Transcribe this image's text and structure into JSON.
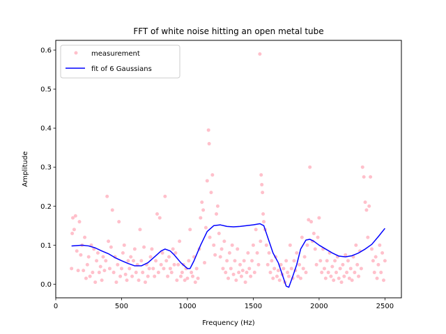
{
  "chart_data": {
    "type": "scatter",
    "title": "FFT of white noise hitting an open metal tube",
    "xlabel": "Frequency (Hz)",
    "ylabel": "Amplitude",
    "xlim": [
      0,
      2625
    ],
    "ylim": [
      -0.035,
      0.625
    ],
    "xticks": [
      0,
      500,
      1000,
      1500,
      2000,
      2500
    ],
    "yticks": [
      0.0,
      0.1,
      0.2,
      0.3,
      0.4,
      0.5,
      0.6
    ],
    "grid": false,
    "legend": "top-left",
    "series": [
      {
        "name": "measurement",
        "kind": "scatter",
        "color": "#ffc0cb",
        "points": [
          [
            120,
            0.04
          ],
          [
            125,
            0.13
          ],
          [
            130,
            0.17
          ],
          [
            140,
            0.14
          ],
          [
            150,
            0.175
          ],
          [
            160,
            0.085
          ],
          [
            170,
            0.035
          ],
          [
            180,
            0.16
          ],
          [
            190,
            0.075
          ],
          [
            200,
            0.1
          ],
          [
            210,
            0.035
          ],
          [
            220,
            0.12
          ],
          [
            230,
            0.015
          ],
          [
            240,
            0.05
          ],
          [
            250,
            0.07
          ],
          [
            260,
            0.02
          ],
          [
            270,
            0.1
          ],
          [
            280,
            0.03
          ],
          [
            290,
            0.09
          ],
          [
            300,
            0.005
          ],
          [
            310,
            0.06
          ],
          [
            320,
            0.08
          ],
          [
            330,
            0.03
          ],
          [
            340,
            0.045
          ],
          [
            350,
            0.01
          ],
          [
            360,
            0.07
          ],
          [
            370,
            0.035
          ],
          [
            380,
            0.06
          ],
          [
            390,
            0.225
          ],
          [
            400,
            0.11
          ],
          [
            410,
            0.04
          ],
          [
            420,
            0.095
          ],
          [
            430,
            0.19
          ],
          [
            440,
            0.03
          ],
          [
            450,
            0.07
          ],
          [
            460,
            0.005
          ],
          [
            470,
            0.05
          ],
          [
            480,
            0.16
          ],
          [
            490,
            0.02
          ],
          [
            500,
            0.04
          ],
          [
            510,
            0.08
          ],
          [
            520,
            0.1
          ],
          [
            530,
            0.025
          ],
          [
            540,
            0.01
          ],
          [
            550,
            0.06
          ],
          [
            560,
            0.04
          ],
          [
            570,
            0.07
          ],
          [
            580,
            0.02
          ],
          [
            590,
            0.06
          ],
          [
            600,
            0.09
          ],
          [
            610,
            0.03
          ],
          [
            620,
            0.05
          ],
          [
            630,
            0.01
          ],
          [
            640,
            0.14
          ],
          [
            650,
            0.06
          ],
          [
            660,
            0.03
          ],
          [
            670,
            0.095
          ],
          [
            680,
            0.005
          ],
          [
            690,
            0.05
          ],
          [
            700,
            0.02
          ],
          [
            710,
            0.04
          ],
          [
            720,
            0.07
          ],
          [
            730,
            0.09
          ],
          [
            740,
            0.04
          ],
          [
            750,
            0.02
          ],
          [
            760,
            0.06
          ],
          [
            770,
            0.18
          ],
          [
            780,
            0.03
          ],
          [
            790,
            0.17
          ],
          [
            800,
            0.05
          ],
          [
            810,
            0.08
          ],
          [
            820,
            0.04
          ],
          [
            830,
            0.225
          ],
          [
            840,
            0.06
          ],
          [
            850,
            0.02
          ],
          [
            860,
            0.07
          ],
          [
            870,
            0.04
          ],
          [
            880,
            0.03
          ],
          [
            890,
            0.09
          ],
          [
            900,
            0.05
          ],
          [
            910,
            0.08
          ],
          [
            920,
            0.01
          ],
          [
            930,
            0.05
          ],
          [
            940,
            0.11
          ],
          [
            950,
            0.02
          ],
          [
            960,
            0.03
          ],
          [
            970,
            0.05
          ],
          [
            980,
            0.01
          ],
          [
            990,
            0.04
          ],
          [
            1000,
            0.015
          ],
          [
            1010,
            0.06
          ],
          [
            1020,
            0.14
          ],
          [
            1030,
            0.03
          ],
          [
            1040,
            0.02
          ],
          [
            1050,
            0.07
          ],
          [
            1060,
            0.005
          ],
          [
            1070,
            0.04
          ],
          [
            1080,
            0.015
          ],
          [
            1090,
            0.09
          ],
          [
            1100,
            0.17
          ],
          [
            1110,
            0.21
          ],
          [
            1120,
            0.19
          ],
          [
            1130,
            0.055
          ],
          [
            1140,
            0.145
          ],
          [
            1150,
            0.265
          ],
          [
            1160,
            0.395
          ],
          [
            1165,
            0.36
          ],
          [
            1170,
            0.12
          ],
          [
            1180,
            0.235
          ],
          [
            1190,
            0.28
          ],
          [
            1200,
            0.1
          ],
          [
            1210,
            0.075
          ],
          [
            1220,
            0.18
          ],
          [
            1230,
            0.2
          ],
          [
            1240,
            0.13
          ],
          [
            1250,
            0.07
          ],
          [
            1260,
            0.09
          ],
          [
            1270,
            0.04
          ],
          [
            1280,
            0.11
          ],
          [
            1290,
            0.03
          ],
          [
            1300,
            0.06
          ],
          [
            1310,
            0.015
          ],
          [
            1320,
            0.08
          ],
          [
            1330,
            0.04
          ],
          [
            1340,
            0.1
          ],
          [
            1350,
            0.025
          ],
          [
            1360,
            0.06
          ],
          [
            1370,
            0.01
          ],
          [
            1380,
            0.09
          ],
          [
            1390,
            0.03
          ],
          [
            1400,
            0.05
          ],
          [
            1410,
            0.02
          ],
          [
            1420,
            0.035
          ],
          [
            1430,
            0.06
          ],
          [
            1440,
            0.005
          ],
          [
            1450,
            0.03
          ],
          [
            1460,
            0.08
          ],
          [
            1470,
            0.04
          ],
          [
            1480,
            0.02
          ],
          [
            1490,
            0.06
          ],
          [
            1500,
            0.1
          ],
          [
            1510,
            0.03
          ],
          [
            1520,
            0.14
          ],
          [
            1530,
            0.08
          ],
          [
            1540,
            0.05
          ],
          [
            1550,
            0.59
          ],
          [
            1555,
            0.11
          ],
          [
            1560,
            0.28
          ],
          [
            1565,
            0.255
          ],
          [
            1570,
            0.235
          ],
          [
            1575,
            0.18
          ],
          [
            1580,
            0.16
          ],
          [
            1590,
            0.14
          ],
          [
            1600,
            0.1
          ],
          [
            1610,
            0.05
          ],
          [
            1620,
            0.08
          ],
          [
            1630,
            0.03
          ],
          [
            1640,
            0.06
          ],
          [
            1650,
            0.015
          ],
          [
            1660,
            0.04
          ],
          [
            1670,
            0.07
          ],
          [
            1680,
            0.02
          ],
          [
            1690,
            0.035
          ],
          [
            1700,
            0.01
          ],
          [
            1710,
            0.05
          ],
          [
            1720,
            0.025
          ],
          [
            1730,
            0.04
          ],
          [
            1740,
            0.005
          ],
          [
            1750,
            0.06
          ],
          [
            1760,
            0.03
          ],
          [
            1770,
            0.02
          ],
          [
            1780,
            0.1
          ],
          [
            1790,
            0.04
          ],
          [
            1800,
            0.015
          ],
          [
            1810,
            0.06
          ],
          [
            1820,
            0.035
          ],
          [
            1830,
            0.08
          ],
          [
            1840,
            0.02
          ],
          [
            1850,
            0.05
          ],
          [
            1860,
            0.015
          ],
          [
            1870,
            0.12
          ],
          [
            1880,
            0.04
          ],
          [
            1890,
            0.07
          ],
          [
            1900,
            0.03
          ],
          [
            1910,
            0.1
          ],
          [
            1920,
            0.165
          ],
          [
            1930,
            0.3
          ],
          [
            1940,
            0.16
          ],
          [
            1950,
            0.11
          ],
          [
            1960,
            0.13
          ],
          [
            1970,
            0.09
          ],
          [
            1980,
            0.05
          ],
          [
            1990,
            0.12
          ],
          [
            2000,
            0.17
          ],
          [
            2010,
            0.06
          ],
          [
            2020,
            0.03
          ],
          [
            2030,
            0.09
          ],
          [
            2040,
            0.04
          ],
          [
            2050,
            0.015
          ],
          [
            2060,
            0.06
          ],
          [
            2070,
            0.03
          ],
          [
            2080,
            0.08
          ],
          [
            2090,
            0.02
          ],
          [
            2100,
            0.045
          ],
          [
            2110,
            0.01
          ],
          [
            2120,
            0.06
          ],
          [
            2130,
            0.03
          ],
          [
            2140,
            0.07
          ],
          [
            2150,
            0.015
          ],
          [
            2160,
            0.04
          ],
          [
            2170,
            0.005
          ],
          [
            2180,
            0.05
          ],
          [
            2190,
            0.02
          ],
          [
            2200,
            0.075
          ],
          [
            2210,
            0.03
          ],
          [
            2220,
            0.06
          ],
          [
            2230,
            0.015
          ],
          [
            2240,
            0.04
          ],
          [
            2250,
            0.01
          ],
          [
            2260,
            0.07
          ],
          [
            2270,
            0.03
          ],
          [
            2280,
            0.1
          ],
          [
            2290,
            0.05
          ],
          [
            2300,
            0.02
          ],
          [
            2310,
            0.085
          ],
          [
            2320,
            0.04
          ],
          [
            2330,
            0.3
          ],
          [
            2340,
            0.275
          ],
          [
            2350,
            0.21
          ],
          [
            2360,
            0.19
          ],
          [
            2370,
            0.12
          ],
          [
            2380,
            0.2
          ],
          [
            2390,
            0.275
          ],
          [
            2400,
            0.09
          ],
          [
            2410,
            0.06
          ],
          [
            2420,
            0.03
          ],
          [
            2430,
            0.07
          ],
          [
            2440,
            0.015
          ],
          [
            2450,
            0.05
          ],
          [
            2460,
            0.1
          ],
          [
            2470,
            0.03
          ],
          [
            2480,
            0.08
          ],
          [
            2490,
            0.01
          ],
          [
            2500,
            0.06
          ]
        ]
      },
      {
        "name": "fit of 6 Gaussians",
        "kind": "line",
        "color": "#0000ff",
        "points": [
          [
            120,
            0.098
          ],
          [
            200,
            0.1
          ],
          [
            250,
            0.098
          ],
          [
            300,
            0.093
          ],
          [
            350,
            0.085
          ],
          [
            400,
            0.078
          ],
          [
            450,
            0.068
          ],
          [
            500,
            0.06
          ],
          [
            550,
            0.053
          ],
          [
            600,
            0.047
          ],
          [
            650,
            0.047
          ],
          [
            700,
            0.055
          ],
          [
            750,
            0.07
          ],
          [
            800,
            0.085
          ],
          [
            830,
            0.09
          ],
          [
            870,
            0.085
          ],
          [
            900,
            0.075
          ],
          [
            950,
            0.055
          ],
          [
            1000,
            0.04
          ],
          [
            1020,
            0.04
          ],
          [
            1050,
            0.06
          ],
          [
            1100,
            0.1
          ],
          [
            1150,
            0.135
          ],
          [
            1200,
            0.15
          ],
          [
            1250,
            0.152
          ],
          [
            1300,
            0.148
          ],
          [
            1350,
            0.147
          ],
          [
            1400,
            0.148
          ],
          [
            1450,
            0.15
          ],
          [
            1500,
            0.152
          ],
          [
            1550,
            0.155
          ],
          [
            1580,
            0.15
          ],
          [
            1610,
            0.12
          ],
          [
            1650,
            0.08
          ],
          [
            1690,
            0.055
          ],
          [
            1720,
            0.025
          ],
          [
            1750,
            -0.005
          ],
          [
            1770,
            -0.008
          ],
          [
            1800,
            0.02
          ],
          [
            1830,
            0.05
          ],
          [
            1860,
            0.09
          ],
          [
            1900,
            0.113
          ],
          [
            1930,
            0.115
          ],
          [
            1960,
            0.11
          ],
          [
            2000,
            0.1
          ],
          [
            2050,
            0.09
          ],
          [
            2100,
            0.08
          ],
          [
            2150,
            0.072
          ],
          [
            2200,
            0.07
          ],
          [
            2250,
            0.073
          ],
          [
            2300,
            0.08
          ],
          [
            2350,
            0.09
          ],
          [
            2400,
            0.102
          ],
          [
            2450,
            0.122
          ],
          [
            2500,
            0.143
          ]
        ]
      }
    ]
  }
}
